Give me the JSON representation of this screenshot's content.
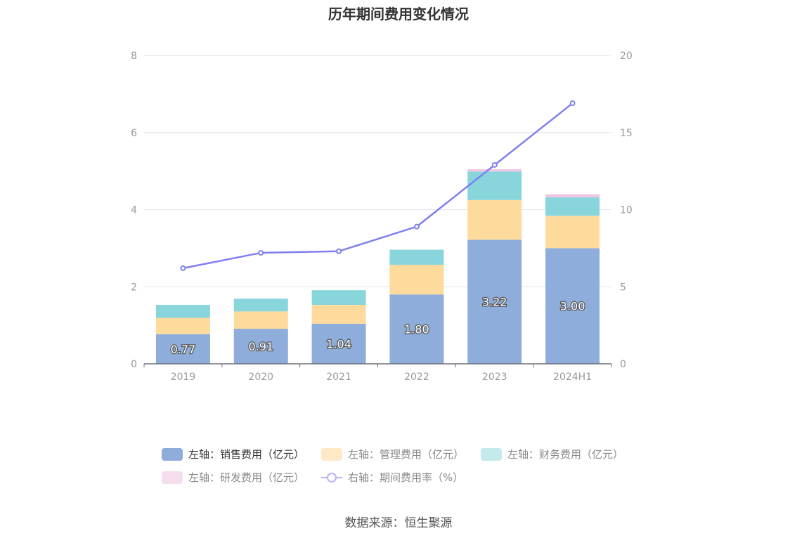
{
  "chart_data": {
    "type": "bar",
    "title": "历年期间费用变化情况",
    "categories": [
      "2019",
      "2020",
      "2021",
      "2022",
      "2023",
      "2024H1"
    ],
    "stacked": true,
    "series": [
      {
        "name": "左轴：销售费用（亿元）",
        "axis": "left",
        "color": "#8eaddb",
        "values": [
          0.77,
          0.91,
          1.04,
          1.8,
          3.22,
          3.0
        ],
        "labels": [
          "0.77",
          "0.91",
          "1.04",
          "1.80",
          "3.22",
          "3.00"
        ]
      },
      {
        "name": "左轴：管理费用（亿元）",
        "axis": "left",
        "color": "#fedb9d",
        "values": [
          0.42,
          0.45,
          0.49,
          0.77,
          1.03,
          0.84
        ]
      },
      {
        "name": "左轴：财务费用（亿元）",
        "axis": "left",
        "color": "#88d5db",
        "values": [
          0.34,
          0.33,
          0.38,
          0.39,
          0.74,
          0.48
        ]
      },
      {
        "name": "左轴：研发费用（亿元）",
        "axis": "left",
        "color": "#f1c6e4",
        "values": [
          0.0,
          0.0,
          0.0,
          0.0,
          0.06,
          0.08
        ]
      },
      {
        "name": "右轴：期间费用率（%）",
        "axis": "right",
        "type": "line",
        "color": "#7f7ff0",
        "values": [
          6.2,
          7.2,
          7.3,
          8.9,
          12.9,
          16.9
        ]
      }
    ],
    "left_axis": {
      "ylim": [
        0,
        8
      ],
      "ticks": [
        "0",
        "2",
        "4",
        "6",
        "8"
      ]
    },
    "right_axis": {
      "ylim": [
        0,
        20
      ],
      "ticks": [
        "0",
        "5",
        "10",
        "15",
        "20"
      ]
    },
    "grid": true,
    "legend_position": "bottom"
  },
  "legend": {
    "row1": [
      "左轴：销售费用（亿元）",
      "左轴：管理费用（亿元）",
      "左轴：财务费用（亿元）"
    ],
    "row2": [
      "左轴：研发费用（亿元）",
      "右轴：期间费用率（%）"
    ]
  },
  "source": "数据来源：恒生聚源"
}
